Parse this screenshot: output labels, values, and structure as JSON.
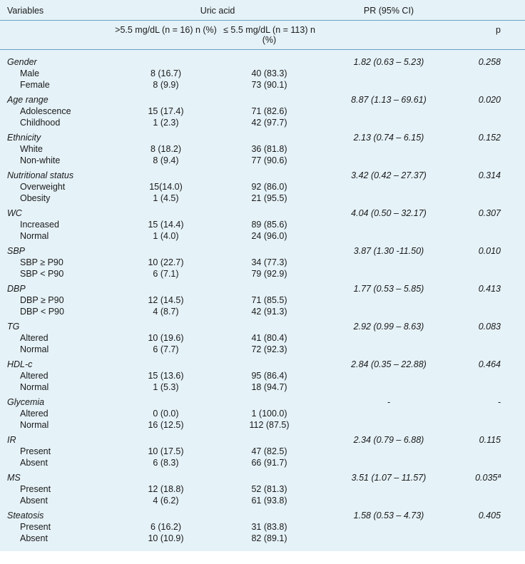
{
  "header": {
    "variables": "Variables",
    "uric_acid": "Uric acid",
    "pr": "PR (95% CI)",
    "ua_high": ">5.5 mg/dL (n = 16) n (%)",
    "ua_low": "≤ 5.5 mg/dL (n = 113) n (%)",
    "p": "p"
  },
  "groups": [
    {
      "name": "Gender",
      "pr": "1.82 (0.63 – 5.23)",
      "p": "0.258",
      "rows": [
        {
          "label": "Male",
          "c1": "8 (16.7)",
          "c2": "40 (83.3)"
        },
        {
          "label": "Female",
          "c1": "8 (9.9)",
          "c2": "73 (90.1)"
        }
      ]
    },
    {
      "name": "Age range",
      "pr": "8.87 (1.13 – 69.61)",
      "p": "0.020",
      "rows": [
        {
          "label": "Adolescence",
          "c1": "15 (17.4)",
          "c2": "71 (82.6)"
        },
        {
          "label": "Childhood",
          "c1": "1 (2.3)",
          "c2": "42 (97.7)"
        }
      ]
    },
    {
      "name": "Ethnicity",
      "pr": "2.13 (0.74 – 6.15)",
      "p": "0.152",
      "rows": [
        {
          "label": "White",
          "c1": "8 (18.2)",
          "c2": "36 (81.8)"
        },
        {
          "label": "Non-white",
          "c1": "8 (9.4)",
          "c2": "77 (90.6)"
        }
      ]
    },
    {
      "name": "Nutritional status",
      "pr": "3.42 (0.42 – 27.37)",
      "p": "0.314",
      "rows": [
        {
          "label": "Overweight",
          "c1": "15(14.0)",
          "c2": "92 (86.0)"
        },
        {
          "label": "Obesity",
          "c1": "1 (4.5)",
          "c2": "21 (95.5)"
        }
      ]
    },
    {
      "name": "WC",
      "pr": "4.04 (0.50 – 32.17)",
      "p": "0.307",
      "rows": [
        {
          "label": "Increased",
          "c1": "15 (14.4)",
          "c2": "89 (85.6)"
        },
        {
          "label": "Normal",
          "c1": "1 (4.0)",
          "c2": "24 (96.0)"
        }
      ]
    },
    {
      "name": "SBP",
      "pr": "3.87 (1.30 -11.50)",
      "p": "0.010",
      "rows": [
        {
          "label": "SBP ≥ P90",
          "c1": "10 (22.7)",
          "c2": "34 (77.3)"
        },
        {
          "label": "SBP < P90",
          "c1": "6 (7.1)",
          "c2": "79 (92.9)"
        }
      ]
    },
    {
      "name": "DBP",
      "pr": "1.77 (0.53 – 5.85)",
      "p": "0.413",
      "rows": [
        {
          "label": "DBP ≥ P90",
          "c1": "12 (14.5)",
          "c2": "71 (85.5)"
        },
        {
          "label": "DBP < P90",
          "c1": "4 (8.7)",
          "c2": "42 (91.3)"
        }
      ]
    },
    {
      "name": "TG",
      "pr": "2.92 (0.99 – 8.63)",
      "p": "0.083",
      "rows": [
        {
          "label": "Altered",
          "c1": "10 (19.6)",
          "c2": "41 (80.4)"
        },
        {
          "label": "Normal",
          "c1": "6 (7.7)",
          "c2": "72 (92.3)"
        }
      ]
    },
    {
      "name": "HDL-c",
      "pr": "2.84 (0.35 – 22.88)",
      "p": "0.464",
      "rows": [
        {
          "label": "Altered",
          "c1": "15 (13.6)",
          "c2": "95 (86.4)"
        },
        {
          "label": "Normal",
          "c1": "1 (5.3)",
          "c2": "18 (94.7)"
        }
      ]
    },
    {
      "name": "Glycemia",
      "pr": "-",
      "p": "-",
      "rows": [
        {
          "label": "Altered",
          "c1": "0 (0.0)",
          "c2": "1 (100.0)"
        },
        {
          "label": "Normal",
          "c1": "16 (12.5)",
          "c2": "112 (87.5)"
        }
      ]
    },
    {
      "name": "IR",
      "pr": "2.34 (0.79 – 6.88)",
      "p": "0.115",
      "rows": [
        {
          "label": "Present",
          "c1": "10 (17.5)",
          "c2": "47 (82.5)"
        },
        {
          "label": "Absent",
          "c1": "6 (8.3)",
          "c2": "66 (91.7)"
        }
      ]
    },
    {
      "name": "MS",
      "pr": "3.51 (1.07 – 11.57)",
      "p": "0.035ª",
      "rows": [
        {
          "label": "Present",
          "c1": "12 (18.8)",
          "c2": "52 (81.3)"
        },
        {
          "label": "Absent",
          "c1": "4 (6.2)",
          "c2": "61 (93.8)"
        }
      ]
    },
    {
      "name": "Steatosis",
      "pr": "1.58 (0.53 – 4.73)",
      "p": "0.405",
      "rows": [
        {
          "label": "Present",
          "c1": "6 (16.2)",
          "c2": "31 (83.8)"
        },
        {
          "label": "Absent",
          "c1": "10 (10.9)",
          "c2": "82 (89.1)"
        }
      ]
    }
  ]
}
